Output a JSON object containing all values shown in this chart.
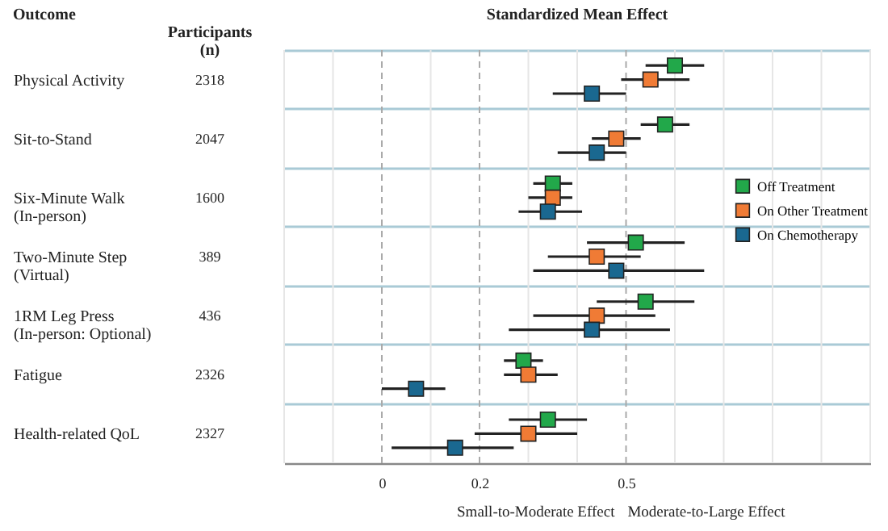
{
  "chart_data": {
    "type": "scatter",
    "orientation": "horizontal",
    "title": "Standardized Mean Effect",
    "ylabel": "Outcome",
    "y2label": "Participants\n(n)",
    "categories": [
      "Physical Activity",
      "Sit-to-Stand",
      "Six-Minute Walk\n(In-person)",
      "Two-Minute Step\n(Virtual)",
      "1RM Leg Press\n(In-person: Optional)",
      "Fatigue",
      "Health-related QoL"
    ],
    "y2_categories": [
      "2318",
      "2047",
      "1600",
      "389",
      "436",
      "2326",
      "2327"
    ],
    "series": [
      {
        "name": "Off Treatment",
        "color": "#22a84a",
        "values": [
          0.6,
          0.58,
          0.35,
          0.52,
          0.54,
          0.29,
          0.34
        ],
        "errors": [
          [
            0.54,
            0.66
          ],
          [
            0.53,
            0.63
          ],
          [
            0.31,
            0.39
          ],
          [
            0.42,
            0.62
          ],
          [
            0.44,
            0.64
          ],
          [
            0.25,
            0.33
          ],
          [
            0.26,
            0.42
          ]
        ]
      },
      {
        "name": "On Other Treatment",
        "color": "#f07b35",
        "values": [
          0.55,
          0.48,
          0.35,
          0.44,
          0.44,
          0.3,
          0.3
        ],
        "errors": [
          [
            0.49,
            0.63
          ],
          [
            0.43,
            0.53
          ],
          [
            0.3,
            0.39
          ],
          [
            0.34,
            0.53
          ],
          [
            0.31,
            0.56
          ],
          [
            0.25,
            0.36
          ],
          [
            0.19,
            0.4
          ]
        ]
      },
      {
        "name": "On Chemotherapy",
        "color": "#1a6890",
        "values": [
          0.43,
          0.44,
          0.34,
          0.48,
          0.43,
          0.07,
          0.15
        ],
        "errors": [
          [
            0.35,
            0.5
          ],
          [
            0.36,
            0.5
          ],
          [
            0.28,
            0.41
          ],
          [
            0.31,
            0.66
          ],
          [
            0.26,
            0.59
          ],
          [
            0.0,
            0.13
          ],
          [
            0.02,
            0.27
          ]
        ]
      }
    ],
    "xlim": [
      -0.2,
      1.0
    ],
    "xticks": [
      {
        "value": -0.2,
        "label": null
      },
      {
        "value": -0.1,
        "label": null
      },
      0,
      {
        "value": 0.1,
        "label": null
      },
      0.2,
      {
        "value": 0.3,
        "label": null
      },
      {
        "value": 0.4,
        "label": null
      },
      0.5,
      {
        "value": 0.6,
        "label": null
      },
      {
        "value": 0.7,
        "label": null
      },
      {
        "value": 0.8,
        "label": null
      },
      {
        "value": 0.9,
        "label": null
      },
      {
        "value": 1.0,
        "label": null
      }
    ],
    "annotations": [
      "Small-to-Moderate Effect",
      "Moderate-to-Large Effect"
    ],
    "grid": true,
    "legend": "right",
    "marker": "square"
  }
}
